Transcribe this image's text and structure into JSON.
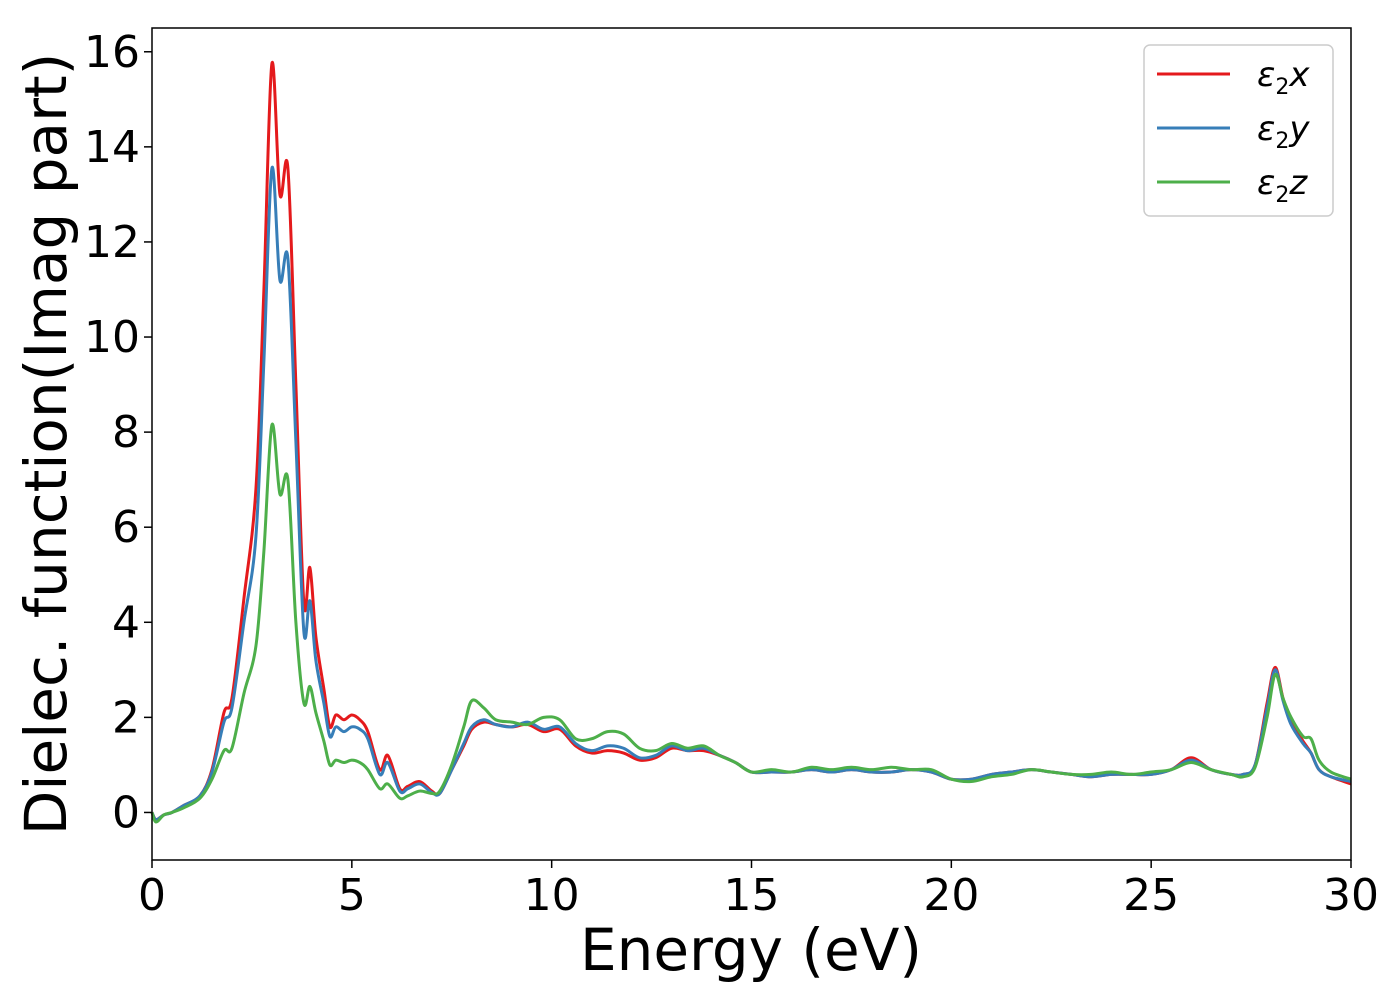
{
  "chart_data": {
    "type": "line",
    "xlabel": "Energy (eV)",
    "ylabel": "Dielec. function(Imag part)",
    "xlim": [
      0,
      30
    ],
    "ylim": [
      -1,
      16.5
    ],
    "xticks": [
      0,
      5,
      10,
      15,
      20,
      25,
      30
    ],
    "yticks": [
      0,
      2,
      4,
      6,
      8,
      10,
      12,
      14,
      16
    ],
    "xtick_labels": [
      "0",
      "5",
      "10",
      "15",
      "20",
      "25",
      "30"
    ],
    "ytick_labels": [
      "0",
      "2",
      "4",
      "6",
      "8",
      "10",
      "12",
      "14",
      "16"
    ],
    "grid": false,
    "legend_position": "top-right",
    "series": [
      {
        "name": "ε2x",
        "legend_base": "ε",
        "legend_sub": "2",
        "legend_suffix": "x",
        "color": "#e41a1c",
        "x": [
          0,
          0.1,
          0.3,
          0.5,
          0.8,
          1.2,
          1.5,
          1.8,
          2.0,
          2.3,
          2.6,
          2.8,
          3.0,
          3.2,
          3.4,
          3.6,
          3.8,
          3.95,
          4.1,
          4.3,
          4.45,
          4.6,
          4.8,
          5.0,
          5.2,
          5.4,
          5.7,
          5.9,
          6.2,
          6.4,
          6.7,
          7.0,
          7.2,
          7.5,
          7.8,
          8.0,
          8.3,
          8.6,
          9.0,
          9.4,
          9.8,
          10.2,
          10.6,
          11.0,
          11.4,
          11.8,
          12.2,
          12.6,
          13.0,
          13.4,
          13.8,
          14.2,
          14.6,
          15.0,
          15.5,
          16.0,
          16.5,
          17.0,
          17.5,
          18.0,
          18.5,
          19.0,
          19.5,
          20.0,
          20.5,
          21.0,
          21.5,
          22.0,
          22.5,
          23.0,
          23.5,
          24.0,
          24.5,
          25.0,
          25.5,
          26.0,
          26.5,
          27.0,
          27.3,
          27.6,
          27.9,
          28.1,
          28.3,
          28.5,
          28.8,
          29.0,
          29.2,
          29.5,
          30.0
        ],
        "y": [
          0,
          -0.15,
          -0.05,
          0,
          0.15,
          0.35,
          0.9,
          2.1,
          2.4,
          4.5,
          6.8,
          11.0,
          15.75,
          13.0,
          13.55,
          9.0,
          4.4,
          5.15,
          3.7,
          2.6,
          1.8,
          2.05,
          1.95,
          2.05,
          1.95,
          1.7,
          0.9,
          1.2,
          0.5,
          0.55,
          0.65,
          0.45,
          0.4,
          0.9,
          1.4,
          1.75,
          1.9,
          1.85,
          1.8,
          1.85,
          1.7,
          1.75,
          1.4,
          1.25,
          1.3,
          1.25,
          1.1,
          1.15,
          1.35,
          1.3,
          1.3,
          1.2,
          1.05,
          0.85,
          0.85,
          0.85,
          0.9,
          0.85,
          0.9,
          0.85,
          0.85,
          0.9,
          0.85,
          0.7,
          0.7,
          0.8,
          0.85,
          0.9,
          0.85,
          0.8,
          0.75,
          0.8,
          0.8,
          0.8,
          0.9,
          1.15,
          0.9,
          0.8,
          0.8,
          1.0,
          2.3,
          3.05,
          2.4,
          1.9,
          1.5,
          1.25,
          0.9,
          0.75,
          0.6
        ]
      },
      {
        "name": "ε2y",
        "legend_base": "ε",
        "legend_sub": "2",
        "legend_suffix": "y",
        "color": "#377eb8",
        "x": [
          0,
          0.1,
          0.3,
          0.5,
          0.8,
          1.2,
          1.5,
          1.8,
          2.0,
          2.3,
          2.6,
          2.8,
          3.0,
          3.2,
          3.4,
          3.6,
          3.8,
          3.95,
          4.1,
          4.3,
          4.45,
          4.6,
          4.8,
          5.0,
          5.2,
          5.4,
          5.7,
          5.9,
          6.2,
          6.4,
          6.7,
          7.0,
          7.2,
          7.5,
          7.8,
          8.0,
          8.3,
          8.6,
          9.0,
          9.4,
          9.8,
          10.2,
          10.6,
          11.0,
          11.4,
          11.8,
          12.2,
          12.6,
          13.0,
          13.4,
          13.8,
          14.2,
          14.6,
          15.0,
          15.5,
          16.0,
          16.5,
          17.0,
          17.5,
          18.0,
          18.5,
          19.0,
          19.5,
          20.0,
          20.5,
          21.0,
          21.5,
          22.0,
          22.5,
          23.0,
          23.5,
          24.0,
          24.5,
          25.0,
          25.5,
          26.0,
          26.5,
          27.0,
          27.3,
          27.6,
          27.9,
          28.1,
          28.3,
          28.5,
          28.8,
          29.0,
          29.2,
          29.5,
          30.0
        ],
        "y": [
          0,
          -0.15,
          -0.05,
          0,
          0.15,
          0.35,
          0.85,
          1.9,
          2.2,
          4.0,
          5.8,
          9.5,
          13.55,
          11.2,
          11.65,
          7.8,
          3.8,
          4.45,
          3.2,
          2.3,
          1.6,
          1.8,
          1.7,
          1.8,
          1.75,
          1.55,
          0.8,
          1.05,
          0.45,
          0.5,
          0.6,
          0.42,
          0.4,
          0.9,
          1.45,
          1.8,
          1.95,
          1.85,
          1.8,
          1.9,
          1.75,
          1.8,
          1.45,
          1.3,
          1.4,
          1.35,
          1.15,
          1.2,
          1.4,
          1.3,
          1.35,
          1.2,
          1.05,
          0.85,
          0.85,
          0.85,
          0.9,
          0.85,
          0.9,
          0.85,
          0.85,
          0.9,
          0.85,
          0.7,
          0.7,
          0.8,
          0.85,
          0.9,
          0.85,
          0.8,
          0.75,
          0.8,
          0.8,
          0.8,
          0.9,
          1.1,
          0.9,
          0.8,
          0.8,
          1.0,
          2.2,
          3.0,
          2.35,
          1.85,
          1.45,
          1.25,
          0.9,
          0.75,
          0.65
        ]
      },
      {
        "name": "ε2z",
        "legend_base": "ε",
        "legend_sub": "2",
        "legend_suffix": "z",
        "color": "#4daf4a",
        "x": [
          0,
          0.1,
          0.3,
          0.5,
          0.8,
          1.2,
          1.5,
          1.8,
          2.0,
          2.3,
          2.6,
          2.8,
          3.0,
          3.2,
          3.4,
          3.6,
          3.8,
          3.95,
          4.1,
          4.3,
          4.45,
          4.6,
          4.8,
          5.0,
          5.2,
          5.4,
          5.7,
          5.9,
          6.2,
          6.4,
          6.7,
          7.0,
          7.2,
          7.5,
          7.8,
          8.0,
          8.3,
          8.6,
          9.0,
          9.4,
          9.8,
          10.2,
          10.6,
          11.0,
          11.4,
          11.8,
          12.2,
          12.6,
          13.0,
          13.4,
          13.8,
          14.2,
          14.6,
          15.0,
          15.5,
          16.0,
          16.5,
          17.0,
          17.5,
          18.0,
          18.5,
          19.0,
          19.5,
          20.0,
          20.5,
          21.0,
          21.5,
          22.0,
          22.5,
          23.0,
          23.5,
          24.0,
          24.5,
          25.0,
          25.5,
          26.0,
          26.5,
          27.0,
          27.3,
          27.6,
          27.9,
          28.1,
          28.3,
          28.5,
          28.8,
          29.0,
          29.2,
          29.5,
          30.0
        ],
        "y": [
          0,
          -0.2,
          -0.05,
          0,
          0.1,
          0.3,
          0.7,
          1.3,
          1.35,
          2.5,
          3.5,
          5.5,
          8.15,
          6.7,
          7.0,
          4.0,
          2.3,
          2.65,
          2.1,
          1.5,
          1.0,
          1.1,
          1.05,
          1.1,
          1.05,
          0.9,
          0.5,
          0.6,
          0.3,
          0.35,
          0.45,
          0.4,
          0.45,
          1.0,
          1.8,
          2.35,
          2.2,
          1.95,
          1.9,
          1.85,
          2.0,
          1.95,
          1.55,
          1.55,
          1.7,
          1.65,
          1.35,
          1.3,
          1.45,
          1.35,
          1.4,
          1.2,
          1.05,
          0.85,
          0.9,
          0.85,
          0.95,
          0.9,
          0.95,
          0.9,
          0.95,
          0.9,
          0.9,
          0.7,
          0.65,
          0.75,
          0.8,
          0.9,
          0.85,
          0.8,
          0.8,
          0.85,
          0.8,
          0.85,
          0.9,
          1.05,
          0.9,
          0.8,
          0.75,
          0.95,
          2.0,
          2.9,
          2.4,
          2.0,
          1.6,
          1.55,
          1.1,
          0.85,
          0.7
        ]
      }
    ]
  }
}
